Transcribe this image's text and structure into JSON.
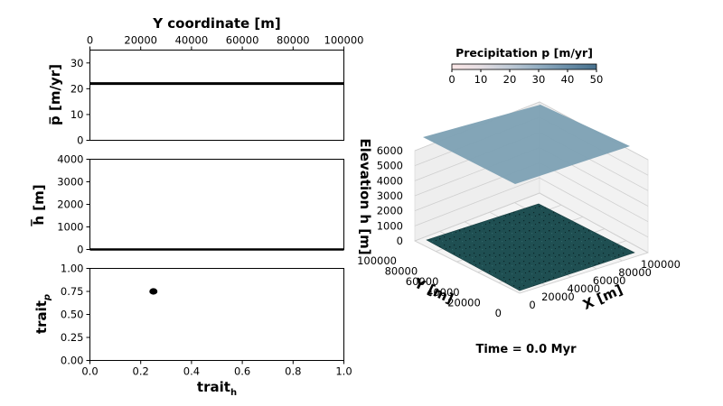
{
  "chart_data": [
    {
      "type": "line",
      "panel": "precip-profile",
      "xlabel_top": "Y coordinate [m]",
      "ylabel": "p̅ [m/yr]",
      "xlim": [
        0,
        100000
      ],
      "ylim": [
        0,
        35
      ],
      "xticks": [
        "0",
        "20000",
        "40000",
        "60000",
        "80000",
        "100000"
      ],
      "yticks": [
        "0",
        "10",
        "20",
        "30"
      ],
      "x": [
        0,
        100000
      ],
      "y": [
        22,
        22
      ],
      "color": "#000000"
    },
    {
      "type": "line",
      "panel": "elevation-profile",
      "ylabel": "h̅ [m]",
      "xlim": [
        0,
        100000
      ],
      "ylim": [
        0,
        4000
      ],
      "yticks": [
        "0",
        "1000",
        "2000",
        "3000",
        "4000"
      ],
      "x": [
        0,
        100000
      ],
      "y": [
        0,
        0
      ],
      "color": "#000000"
    },
    {
      "type": "scatter",
      "panel": "trait-space",
      "xlabel": "trait",
      "xlabel_sub": "h",
      "ylabel": "trait",
      "ylabel_sub": "p",
      "xlim": [
        0,
        1
      ],
      "ylim": [
        0,
        1
      ],
      "xticks": [
        "0.0",
        "0.2",
        "0.4",
        "0.6",
        "0.8",
        "1.0"
      ],
      "yticks": [
        "0.00",
        "0.25",
        "0.50",
        "0.75",
        "1.00"
      ],
      "points": [
        {
          "x": 0.25,
          "y": 0.75
        }
      ],
      "color": "#000000"
    },
    {
      "type": "surface3d",
      "panel": "landscape",
      "zlabel": "Elevation h [m]",
      "xlabel": "X [m]",
      "ylabel": "Y [m]",
      "xlim": [
        0,
        100000
      ],
      "ylim": [
        0,
        100000
      ],
      "zlim": [
        0,
        6000
      ],
      "xticks": [
        "0",
        "20000",
        "40000",
        "60000",
        "80000",
        "100000"
      ],
      "yticks": [
        "0",
        "20000",
        "40000",
        "60000",
        "80000",
        "100000"
      ],
      "zticks": [
        "0",
        "1000",
        "2000",
        "3000",
        "4000",
        "5000",
        "6000"
      ],
      "terrain_elevation": 0,
      "terrain_color": "#1f4f52",
      "precip_surface_value": 22,
      "precip_surface_color": "#7fa2b5"
    }
  ],
  "colorbar": {
    "title": "Precipitation p [m/yr]",
    "ticks": [
      "0",
      "10",
      "20",
      "30",
      "40",
      "50"
    ],
    "range": [
      0,
      50
    ],
    "colors": [
      "#fbe6e6",
      "#e5dee3",
      "#bfcad6",
      "#93aec2",
      "#6a8ea8",
      "#46708d"
    ]
  },
  "time_label": "Time = 0.0 Myr"
}
